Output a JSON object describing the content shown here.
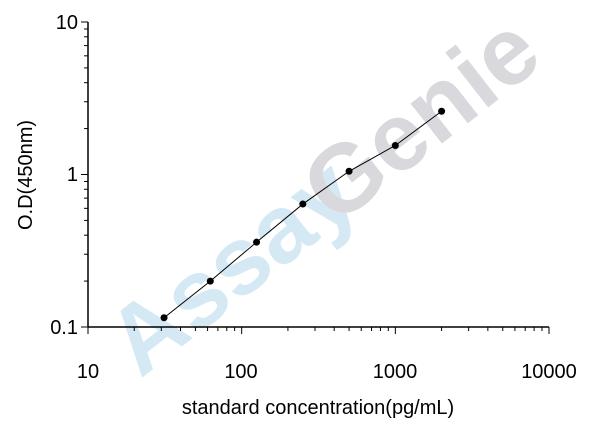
{
  "watermark": {
    "part1": "Assay",
    "part2": "Genie",
    "part1_color": "#d5e9f5",
    "part2_color": "#d9d9dd"
  },
  "chart_data": {
    "type": "line",
    "title": "",
    "xlabel": "standard concentration(pg/mL)",
    "ylabel": "O.D(450nm)",
    "xscale": "log",
    "yscale": "log",
    "xlim": [
      10,
      10000
    ],
    "ylim": [
      0.1,
      10
    ],
    "x_ticks": [
      "10",
      "100",
      "1000",
      "10000"
    ],
    "y_ticks": [
      "0.1",
      "1",
      "10"
    ],
    "grid": false,
    "legend": "none",
    "line_color": "#000000",
    "marker_color": "#000000",
    "series": [
      {
        "x": [
          31.25,
          62.5,
          125,
          250,
          500,
          1000,
          2000
        ],
        "values": [
          0.115,
          0.2,
          0.36,
          0.64,
          1.05,
          1.55,
          2.6
        ]
      }
    ]
  }
}
